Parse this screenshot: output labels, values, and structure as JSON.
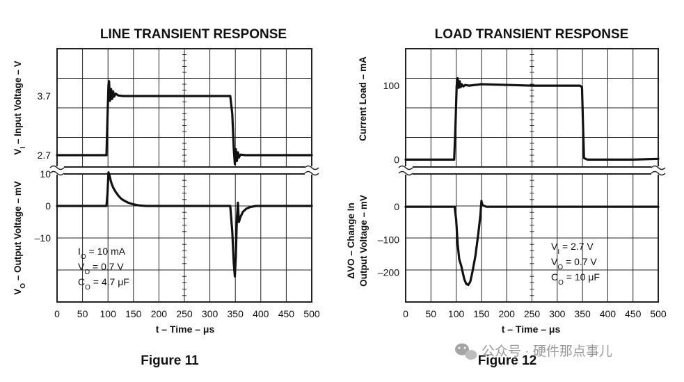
{
  "colors": {
    "ink": "#111111",
    "grid": "#222222",
    "watermark": "#9a9a9a"
  },
  "watermark": {
    "icon": "wechat-icon",
    "text": "公众号 · 硬件那点事儿"
  },
  "chart_data": [
    {
      "type": "line",
      "title": "LINE TRANSIENT RESPONSE",
      "caption": "Figure 11",
      "xlabel": "t – Time – μs",
      "xlim": [
        0,
        500
      ],
      "x_ticks": [
        "0",
        "50",
        "100",
        "150",
        "200",
        "250",
        "300",
        "350",
        "400",
        "450",
        "500"
      ],
      "panels": [
        {
          "ylabel_prefix": "V",
          "ylabel_sub": "I",
          "ylabel_rest": " – Input Voltage – V",
          "ylim": [
            2.5,
            4.5
          ],
          "y_ticks": [
            {
              "label": "3.7",
              "value": 3.7
            },
            {
              "label": "2.7",
              "value": 2.7
            }
          ],
          "series": [
            {
              "name": "Input Voltage",
              "x": [
                0,
                97,
                99,
                101,
                102,
                104,
                106,
                108,
                110,
                112,
                115,
                120,
                130,
                250,
                340,
                344,
                347,
                349,
                351,
                353,
                355,
                357,
                360,
                370,
                500
              ],
              "y": [
                2.7,
                2.7,
                3.35,
                3.88,
                3.95,
                3.62,
                3.82,
                3.65,
                3.78,
                3.69,
                3.74,
                3.71,
                3.7,
                3.7,
                3.7,
                3.4,
                2.8,
                2.55,
                2.8,
                2.6,
                2.75,
                2.66,
                2.71,
                2.7,
                2.7
              ]
            }
          ]
        },
        {
          "ylabel_prefix": "V",
          "ylabel_sub": "O",
          "ylabel_rest": " – Output Voltage – mV",
          "ylim": [
            -30,
            10
          ],
          "y_ticks": [
            {
              "label": "10",
              "value": 10
            },
            {
              "label": "0",
              "value": 0
            },
            {
              "label": "–10",
              "value": -10
            }
          ],
          "series": [
            {
              "name": "Output Voltage",
              "x": [
                0,
                97,
                99,
                101,
                103,
                106,
                110,
                115,
                120,
                125,
                130,
                140,
                150,
                160,
                175,
                190,
                250,
                340,
                344,
                347,
                349,
                351,
                353,
                355,
                357,
                360,
                365,
                372,
                380,
                390,
                500
              ],
              "y": [
                0,
                0,
                4,
                10.5,
                9.5,
                7.5,
                5.8,
                4.4,
                3.3,
                2.4,
                1.8,
                1.0,
                0.5,
                0.2,
                0,
                0,
                0,
                0,
                -8,
                -18,
                -22,
                -16,
                -4,
                1,
                -5,
                -3.5,
                -1.8,
                -0.8,
                -0.3,
                0,
                0
              ]
            }
          ]
        }
      ],
      "annotations": [
        {
          "prefix": "I",
          "sub": "O",
          "rest": " = 10 mA"
        },
        {
          "prefix": "V",
          "sub": "O",
          "rest": " = 0.7 V"
        },
        {
          "prefix": "C",
          "sub": "O",
          "rest": " = 4.7 μF"
        }
      ]
    },
    {
      "type": "line",
      "title": "LOAD TRANSIENT RESPONSE",
      "caption": "Figure 12",
      "xlabel": "t – Time – μs",
      "xlim": [
        0,
        500
      ],
      "x_ticks": [
        "0",
        "50",
        "100",
        "150",
        "200",
        "250",
        "300",
        "350",
        "400",
        "450",
        "500"
      ],
      "panels": [
        {
          "ylabel_lines": [
            "Current Load – mA"
          ],
          "ylim": [
            -10,
            150
          ],
          "y_ticks": [
            {
              "label": "100",
              "value": 100
            },
            {
              "label": "0",
              "value": 0
            }
          ],
          "series": [
            {
              "name": "Current Load",
              "x": [
                0,
                96,
                99,
                101,
                103,
                105,
                107,
                109,
                111,
                114,
                118,
                125,
                150,
                250,
                345,
                349,
                351,
                353,
                360,
                450,
                500
              ],
              "y": [
                0,
                0,
                55,
                100,
                110,
                97,
                106,
                98,
                102,
                99,
                101,
                100,
                102,
                100,
                100,
                98,
                50,
                2,
                0,
                0,
                1
              ]
            }
          ]
        },
        {
          "ylabel_lines": [
            "ΔVO – Change In",
            "Output Voltage – mV"
          ],
          "ylim": [
            -290,
            100
          ],
          "y_ticks": [
            {
              "label": "0",
              "value": 0
            },
            {
              "label": "–100",
              "value": -100
            },
            {
              "label": "–200",
              "value": -200
            }
          ],
          "series": [
            {
              "name": "Output Voltage Change",
              "x": [
                0,
                97,
                100,
                103,
                106,
                110,
                113,
                116,
                120,
                124,
                128,
                132,
                138,
                144,
                148,
                150,
                152,
                160,
                200,
                500
              ],
              "y": [
                0,
                0,
                -40,
                -115,
                -160,
                -180,
                -200,
                -220,
                -235,
                -238,
                -228,
                -200,
                -150,
                -80,
                -25,
                18,
                5,
                0,
                0,
                0
              ]
            }
          ]
        }
      ],
      "annotations": [
        {
          "prefix": "V",
          "sub": "I",
          "rest": " = 2.7 V"
        },
        {
          "prefix": "V",
          "sub": "O",
          "rest": " = 0.7 V"
        },
        {
          "prefix": "C",
          "sub": "O",
          "rest": " = 10 μF"
        }
      ]
    }
  ]
}
